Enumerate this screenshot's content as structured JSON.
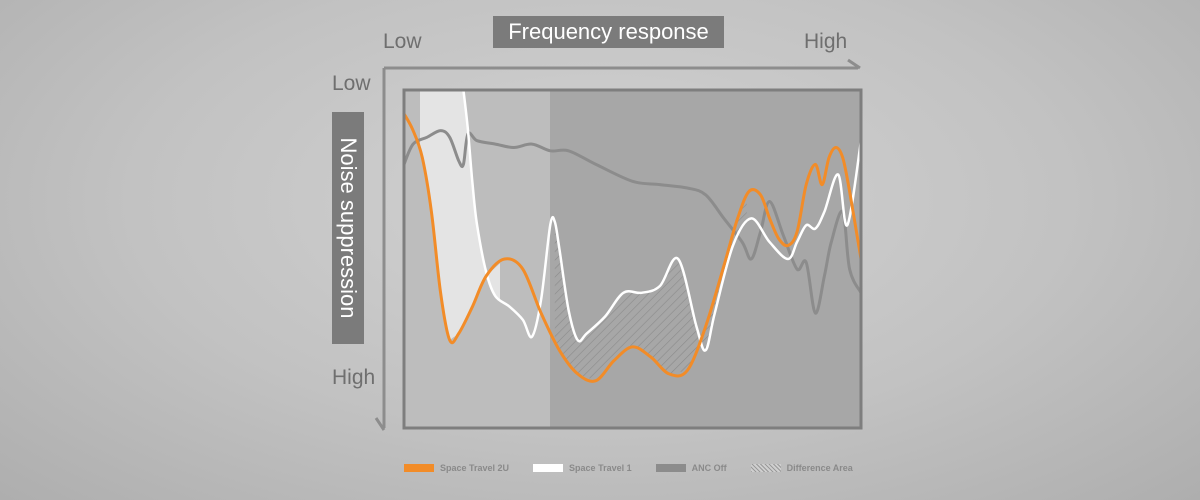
{
  "chart_data": {
    "type": "line",
    "title": "Frequency response",
    "xlabel": "",
    "ylabel": "Noise suppression",
    "x_tick_labels": [
      "Low",
      "High"
    ],
    "y_tick_labels": [
      "Low",
      "High"
    ],
    "xlim": [
      0,
      1
    ],
    "ylim": [
      0,
      1
    ],
    "grid": false,
    "legend_position": "bottom",
    "series": [
      {
        "name": "Space Travel 2U",
        "color": "#f28c28",
        "x": [
          0.0,
          0.02,
          0.04,
          0.06,
          0.08,
          0.1,
          0.12,
          0.15,
          0.18,
          0.22,
          0.26,
          0.3,
          0.34,
          0.38,
          0.42,
          0.46,
          0.5,
          0.54,
          0.58,
          0.62,
          0.66,
          0.7,
          0.73,
          0.755,
          0.78,
          0.8,
          0.82,
          0.84,
          0.86,
          0.88,
          0.9,
          0.915,
          0.93,
          0.945,
          0.96,
          0.975,
          1.0
        ],
        "y": [
          0.07,
          0.12,
          0.2,
          0.36,
          0.6,
          0.74,
          0.72,
          0.64,
          0.55,
          0.5,
          0.53,
          0.66,
          0.77,
          0.84,
          0.86,
          0.8,
          0.76,
          0.79,
          0.84,
          0.83,
          0.7,
          0.52,
          0.38,
          0.3,
          0.31,
          0.38,
          0.44,
          0.46,
          0.42,
          0.28,
          0.22,
          0.28,
          0.2,
          0.17,
          0.2,
          0.3,
          0.5
        ]
      },
      {
        "name": "Space Travel 1",
        "color": "#ffffff",
        "x": [
          0.13,
          0.14,
          0.15,
          0.16,
          0.18,
          0.2,
          0.23,
          0.26,
          0.28,
          0.3,
          0.32,
          0.33,
          0.34,
          0.36,
          0.38,
          0.4,
          0.44,
          0.48,
          0.52,
          0.56,
          0.6,
          0.64,
          0.66,
          0.68,
          0.72,
          0.76,
          0.8,
          0.84,
          0.86,
          0.88,
          0.9,
          0.92,
          0.95,
          0.97,
          1.0
        ],
        "y": [
          0.0,
          0.12,
          0.28,
          0.4,
          0.54,
          0.61,
          0.64,
          0.68,
          0.73,
          0.62,
          0.4,
          0.39,
          0.47,
          0.65,
          0.74,
          0.72,
          0.67,
          0.6,
          0.6,
          0.58,
          0.5,
          0.7,
          0.77,
          0.66,
          0.46,
          0.38,
          0.45,
          0.5,
          0.45,
          0.4,
          0.41,
          0.36,
          0.25,
          0.4,
          0.15
        ]
      },
      {
        "name": "ANC Off",
        "color": "#8c8c8c",
        "x": [
          0.0,
          0.02,
          0.05,
          0.08,
          0.1,
          0.12,
          0.13,
          0.14,
          0.16,
          0.2,
          0.24,
          0.28,
          0.32,
          0.36,
          0.42,
          0.5,
          0.56,
          0.62,
          0.66,
          0.7,
          0.74,
          0.76,
          0.78,
          0.8,
          0.83,
          0.86,
          0.88,
          0.9,
          0.92,
          0.935,
          0.96,
          0.975,
          1.0
        ],
        "y": [
          0.22,
          0.16,
          0.14,
          0.12,
          0.14,
          0.21,
          0.22,
          0.13,
          0.15,
          0.16,
          0.17,
          0.16,
          0.18,
          0.18,
          0.22,
          0.27,
          0.28,
          0.29,
          0.31,
          0.38,
          0.45,
          0.5,
          0.42,
          0.33,
          0.43,
          0.53,
          0.51,
          0.66,
          0.55,
          0.45,
          0.36,
          0.53,
          0.6
        ]
      }
    ],
    "legend": [
      {
        "label": "Space Travel 2U",
        "color": "#f28c28",
        "kind": "line"
      },
      {
        "label": "Space Travel 1",
        "color": "#ffffff",
        "kind": "line"
      },
      {
        "label": "ANC Off",
        "color": "#8c8c8c",
        "kind": "line"
      },
      {
        "label": "Difference Area",
        "color": "#9a9a9a",
        "kind": "hatch"
      }
    ]
  }
}
